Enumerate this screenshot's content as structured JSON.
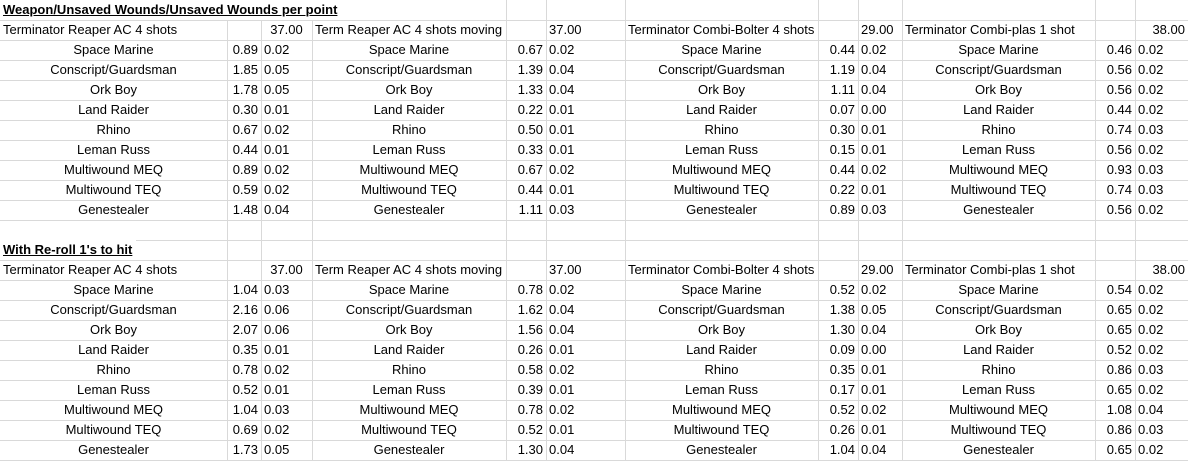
{
  "sections": [
    {
      "heading": "Weapon/Unsaved Wounds/Unsaved Wounds per point",
      "blocks": [
        {
          "weapon": "Terminator Reaper AC 4 shots",
          "cost": "37.00",
          "rows": [
            {
              "target": "Space Marine",
              "wounds": "0.89",
              "per_point": "0.02"
            },
            {
              "target": "Conscript/Guardsman",
              "wounds": "1.85",
              "per_point": "0.05"
            },
            {
              "target": "Ork Boy",
              "wounds": "1.78",
              "per_point": "0.05"
            },
            {
              "target": "Land Raider",
              "wounds": "0.30",
              "per_point": "0.01"
            },
            {
              "target": "Rhino",
              "wounds": "0.67",
              "per_point": "0.02"
            },
            {
              "target": "Leman Russ",
              "wounds": "0.44",
              "per_point": "0.01"
            },
            {
              "target": "Multiwound MEQ",
              "wounds": "0.89",
              "per_point": "0.02"
            },
            {
              "target": "Multiwound TEQ",
              "wounds": "0.59",
              "per_point": "0.02"
            },
            {
              "target": "Genestealer",
              "wounds": "1.48",
              "per_point": "0.04"
            }
          ]
        },
        {
          "weapon": "Term Reaper AC 4 shots moving",
          "cost": "37.00",
          "rows": [
            {
              "target": "Space Marine",
              "wounds": "0.67",
              "per_point": "0.02"
            },
            {
              "target": "Conscript/Guardsman",
              "wounds": "1.39",
              "per_point": "0.04"
            },
            {
              "target": "Ork Boy",
              "wounds": "1.33",
              "per_point": "0.04"
            },
            {
              "target": "Land Raider",
              "wounds": "0.22",
              "per_point": "0.01"
            },
            {
              "target": "Rhino",
              "wounds": "0.50",
              "per_point": "0.01"
            },
            {
              "target": "Leman Russ",
              "wounds": "0.33",
              "per_point": "0.01"
            },
            {
              "target": "Multiwound MEQ",
              "wounds": "0.67",
              "per_point": "0.02"
            },
            {
              "target": "Multiwound TEQ",
              "wounds": "0.44",
              "per_point": "0.01"
            },
            {
              "target": "Genestealer",
              "wounds": "1.11",
              "per_point": "0.03"
            }
          ]
        },
        {
          "weapon": "Terminator Combi-Bolter 4 shots",
          "cost": "29.00",
          "rows": [
            {
              "target": "Space Marine",
              "wounds": "0.44",
              "per_point": "0.02"
            },
            {
              "target": "Conscript/Guardsman",
              "wounds": "1.19",
              "per_point": "0.04"
            },
            {
              "target": "Ork Boy",
              "wounds": "1.11",
              "per_point": "0.04"
            },
            {
              "target": "Land Raider",
              "wounds": "0.07",
              "per_point": "0.00"
            },
            {
              "target": "Rhino",
              "wounds": "0.30",
              "per_point": "0.01"
            },
            {
              "target": "Leman Russ",
              "wounds": "0.15",
              "per_point": "0.01"
            },
            {
              "target": "Multiwound MEQ",
              "wounds": "0.44",
              "per_point": "0.02"
            },
            {
              "target": "Multiwound TEQ",
              "wounds": "0.22",
              "per_point": "0.01"
            },
            {
              "target": "Genestealer",
              "wounds": "0.89",
              "per_point": "0.03"
            }
          ]
        },
        {
          "weapon": "Terminator Combi-plas 1 shot",
          "cost": "38.00",
          "rows": [
            {
              "target": "Space Marine",
              "wounds": "0.46",
              "per_point": "0.02"
            },
            {
              "target": "Conscript/Guardsman",
              "wounds": "0.56",
              "per_point": "0.02"
            },
            {
              "target": "Ork Boy",
              "wounds": "0.56",
              "per_point": "0.02"
            },
            {
              "target": "Land Raider",
              "wounds": "0.44",
              "per_point": "0.02"
            },
            {
              "target": "Rhino",
              "wounds": "0.74",
              "per_point": "0.03"
            },
            {
              "target": "Leman Russ",
              "wounds": "0.56",
              "per_point": "0.02"
            },
            {
              "target": "Multiwound MEQ",
              "wounds": "0.93",
              "per_point": "0.03"
            },
            {
              "target": "Multiwound TEQ",
              "wounds": "0.74",
              "per_point": "0.03"
            },
            {
              "target": "Genestealer",
              "wounds": "0.56",
              "per_point": "0.02"
            }
          ]
        }
      ]
    },
    {
      "heading": "With Re-roll 1's to hit",
      "blocks": [
        {
          "weapon": "Terminator Reaper AC 4 shots",
          "cost": "37.00",
          "rows": [
            {
              "target": "Space Marine",
              "wounds": "1.04",
              "per_point": "0.03"
            },
            {
              "target": "Conscript/Guardsman",
              "wounds": "2.16",
              "per_point": "0.06"
            },
            {
              "target": "Ork Boy",
              "wounds": "2.07",
              "per_point": "0.06"
            },
            {
              "target": "Land Raider",
              "wounds": "0.35",
              "per_point": "0.01"
            },
            {
              "target": "Rhino",
              "wounds": "0.78",
              "per_point": "0.02"
            },
            {
              "target": "Leman Russ",
              "wounds": "0.52",
              "per_point": "0.01"
            },
            {
              "target": "Multiwound MEQ",
              "wounds": "1.04",
              "per_point": "0.03"
            },
            {
              "target": "Multiwound TEQ",
              "wounds": "0.69",
              "per_point": "0.02"
            },
            {
              "target": "Genestealer",
              "wounds": "1.73",
              "per_point": "0.05"
            }
          ]
        },
        {
          "weapon": "Term Reaper AC 4 shots moving",
          "cost": "37.00",
          "rows": [
            {
              "target": "Space Marine",
              "wounds": "0.78",
              "per_point": "0.02"
            },
            {
              "target": "Conscript/Guardsman",
              "wounds": "1.62",
              "per_point": "0.04"
            },
            {
              "target": "Ork Boy",
              "wounds": "1.56",
              "per_point": "0.04"
            },
            {
              "target": "Land Raider",
              "wounds": "0.26",
              "per_point": "0.01"
            },
            {
              "target": "Rhino",
              "wounds": "0.58",
              "per_point": "0.02"
            },
            {
              "target": "Leman Russ",
              "wounds": "0.39",
              "per_point": "0.01"
            },
            {
              "target": "Multiwound MEQ",
              "wounds": "0.78",
              "per_point": "0.02"
            },
            {
              "target": "Multiwound TEQ",
              "wounds": "0.52",
              "per_point": "0.01"
            },
            {
              "target": "Genestealer",
              "wounds": "1.30",
              "per_point": "0.04"
            }
          ]
        },
        {
          "weapon": "Terminator Combi-Bolter 4 shots",
          "cost": "29.00",
          "rows": [
            {
              "target": "Space Marine",
              "wounds": "0.52",
              "per_point": "0.02"
            },
            {
              "target": "Conscript/Guardsman",
              "wounds": "1.38",
              "per_point": "0.05"
            },
            {
              "target": "Ork Boy",
              "wounds": "1.30",
              "per_point": "0.04"
            },
            {
              "target": "Land Raider",
              "wounds": "0.09",
              "per_point": "0.00"
            },
            {
              "target": "Rhino",
              "wounds": "0.35",
              "per_point": "0.01"
            },
            {
              "target": "Leman Russ",
              "wounds": "0.17",
              "per_point": "0.01"
            },
            {
              "target": "Multiwound MEQ",
              "wounds": "0.52",
              "per_point": "0.02"
            },
            {
              "target": "Multiwound TEQ",
              "wounds": "0.26",
              "per_point": "0.01"
            },
            {
              "target": "Genestealer",
              "wounds": "1.04",
              "per_point": "0.04"
            }
          ]
        },
        {
          "weapon": "Terminator Combi-plas 1 shot",
          "cost": "38.00",
          "rows": [
            {
              "target": "Space Marine",
              "wounds": "0.54",
              "per_point": "0.02"
            },
            {
              "target": "Conscript/Guardsman",
              "wounds": "0.65",
              "per_point": "0.02"
            },
            {
              "target": "Ork Boy",
              "wounds": "0.65",
              "per_point": "0.02"
            },
            {
              "target": "Land Raider",
              "wounds": "0.52",
              "per_point": "0.02"
            },
            {
              "target": "Rhino",
              "wounds": "0.86",
              "per_point": "0.03"
            },
            {
              "target": "Leman Russ",
              "wounds": "0.65",
              "per_point": "0.02"
            },
            {
              "target": "Multiwound MEQ",
              "wounds": "1.08",
              "per_point": "0.04"
            },
            {
              "target": "Multiwound TEQ",
              "wounds": "0.86",
              "per_point": "0.03"
            },
            {
              "target": "Genestealer",
              "wounds": "0.65",
              "per_point": "0.02"
            }
          ]
        }
      ]
    }
  ]
}
